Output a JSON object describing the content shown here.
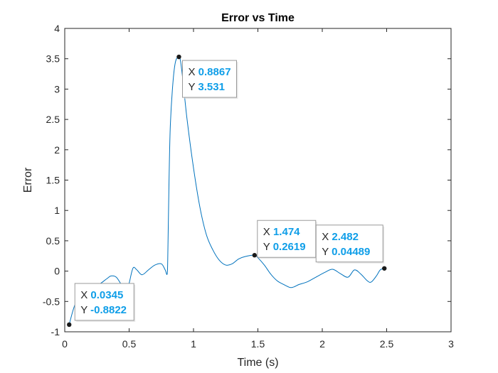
{
  "chart_data": {
    "type": "line",
    "title": "Error vs Time",
    "xlabel": "Time (s)",
    "ylabel": "Error",
    "xlim": [
      0,
      3
    ],
    "ylim": [
      -1,
      4
    ],
    "xticks": [
      0,
      0.5,
      1,
      1.5,
      2,
      2.5,
      3
    ],
    "xtick_labels": [
      "0",
      "0.5",
      "1",
      "1.5",
      "2",
      "2.5",
      "3"
    ],
    "yticks": [
      -1,
      -0.5,
      0,
      0.5,
      1,
      1.5,
      2,
      2.5,
      3,
      3.5,
      4
    ],
    "ytick_labels": [
      "-1",
      "-0.5",
      "0",
      "0.5",
      "1",
      "1.5",
      "2",
      "2.5",
      "3",
      "3.5",
      "4"
    ],
    "grid": false,
    "line_color": "#0072bd",
    "series": [
      {
        "x": [
          0.0345,
          0.08,
          0.15,
          0.22,
          0.28,
          0.33,
          0.36,
          0.4,
          0.44,
          0.48,
          0.5,
          0.53,
          0.56,
          0.6,
          0.65,
          0.7,
          0.75,
          0.78,
          0.795,
          0.8,
          0.81,
          0.82,
          0.84,
          0.86,
          0.8867,
          0.9,
          0.92,
          0.95,
          1.0,
          1.05,
          1.1,
          1.15,
          1.2,
          1.25,
          1.3,
          1.35,
          1.4,
          1.474,
          1.5,
          1.55,
          1.6,
          1.65,
          1.7,
          1.75,
          1.78,
          1.82,
          1.88,
          1.95,
          2.02,
          2.08,
          2.14,
          2.2,
          2.25,
          2.3,
          2.35,
          2.38,
          2.42,
          2.45,
          2.482
        ],
        "y": [
          -0.8822,
          -0.55,
          -0.3,
          -0.28,
          -0.2,
          -0.12,
          -0.08,
          -0.1,
          -0.22,
          -0.3,
          -0.2,
          0.05,
          0.02,
          -0.06,
          0.02,
          0.1,
          0.12,
          0.02,
          -0.05,
          0.2,
          1.5,
          2.4,
          3.1,
          3.45,
          3.531,
          3.45,
          3.1,
          2.5,
          1.7,
          1.05,
          0.6,
          0.35,
          0.18,
          0.1,
          0.12,
          0.2,
          0.24,
          0.2619,
          0.22,
          0.1,
          -0.05,
          -0.16,
          -0.22,
          -0.27,
          -0.26,
          -0.22,
          -0.18,
          -0.1,
          -0.02,
          0.03,
          -0.04,
          -0.1,
          0.02,
          -0.05,
          -0.16,
          -0.18,
          -0.08,
          0.02,
          0.04489
        ]
      }
    ],
    "datatips": [
      {
        "x_label": "X",
        "x_value": "0.0345",
        "y_label": "Y",
        "y_value": "-0.8822",
        "x": 0.0345,
        "y": -0.8822
      },
      {
        "x_label": "X",
        "x_value": "0.8867",
        "y_label": "Y",
        "y_value": "3.531",
        "x": 0.8867,
        "y": 3.531
      },
      {
        "x_label": "X",
        "x_value": "1.474",
        "y_label": "Y",
        "y_value": "0.2619",
        "x": 1.474,
        "y": 0.2619
      },
      {
        "x_label": "X",
        "x_value": "2.482",
        "y_label": "Y",
        "y_value": "0.04489",
        "x": 2.482,
        "y": 0.04489
      }
    ]
  }
}
